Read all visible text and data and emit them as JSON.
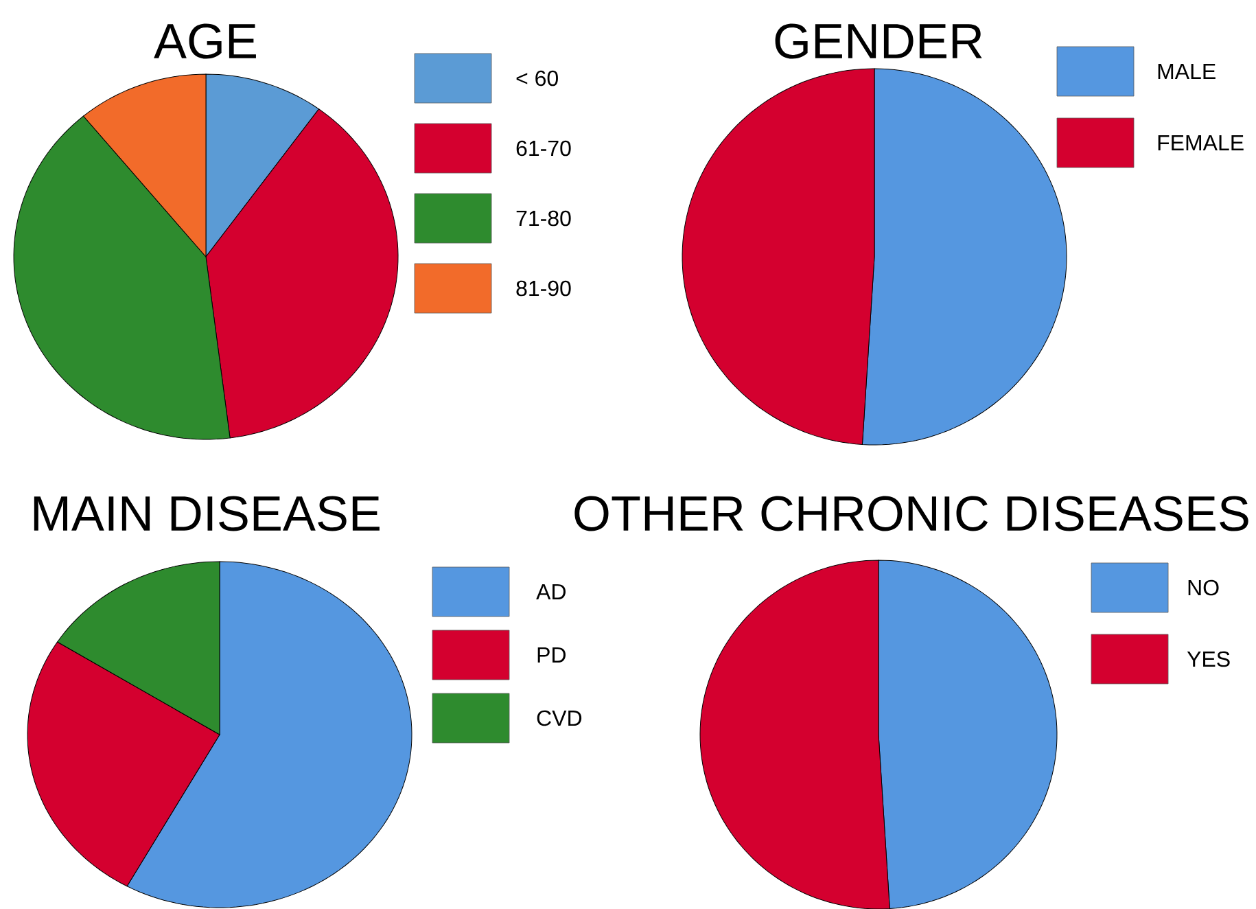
{
  "chart_data": [
    {
      "type": "pie",
      "title": "AGE",
      "categories": [
        "< 60",
        "61-70",
        "71-80",
        "81-90"
      ],
      "values": [
        10,
        38,
        41,
        11
      ],
      "colors": [
        "#5b9bd5",
        "#d4002f",
        "#2e8b2e",
        "#f26b2a"
      ],
      "legend": "right"
    },
    {
      "type": "pie",
      "title": "GENDER",
      "categories": [
        "MALE",
        "FEMALE"
      ],
      "values": [
        51,
        49
      ],
      "colors": [
        "#5597e0",
        "#d4002f"
      ],
      "legend": "right"
    },
    {
      "type": "pie",
      "title": "MAIN DISEASE",
      "categories": [
        "AD",
        "PD",
        "CVD"
      ],
      "values": [
        58,
        26,
        16
      ],
      "colors": [
        "#5597e0",
        "#d4002f",
        "#2e8b2e"
      ],
      "legend": "right"
    },
    {
      "type": "pie",
      "title": "OTHER CHRONIC DISEASES",
      "categories": [
        "NO",
        "YES"
      ],
      "values": [
        49,
        51
      ],
      "colors": [
        "#5597e0",
        "#d4002f"
      ],
      "legend": "right"
    }
  ]
}
